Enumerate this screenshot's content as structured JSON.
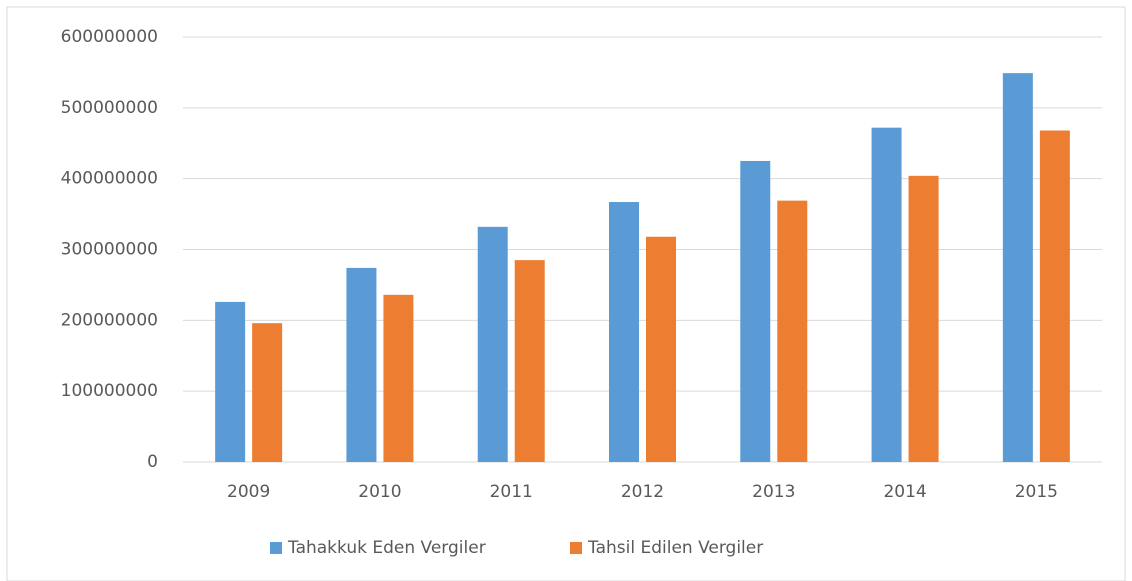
{
  "chart_data": {
    "type": "bar",
    "categories": [
      "2009",
      "2010",
      "2011",
      "2012",
      "2013",
      "2014",
      "2015"
    ],
    "series": [
      {
        "name": "Tahakkuk Eden Vergiler",
        "color": "#5b9bd5",
        "values": [
          226000000,
          274000000,
          332000000,
          367000000,
          425000000,
          472000000,
          549000000
        ]
      },
      {
        "name": "Tahsil Edilen Vergiler",
        "color": "#ed7d31",
        "values": [
          196000000,
          236000000,
          285000000,
          318000000,
          369000000,
          404000000,
          468000000
        ]
      }
    ],
    "ylim": [
      0,
      600000000
    ],
    "yticks": [
      0,
      100000000,
      200000000,
      300000000,
      400000000,
      500000000,
      600000000
    ],
    "grid": true,
    "legend": "bottom"
  }
}
